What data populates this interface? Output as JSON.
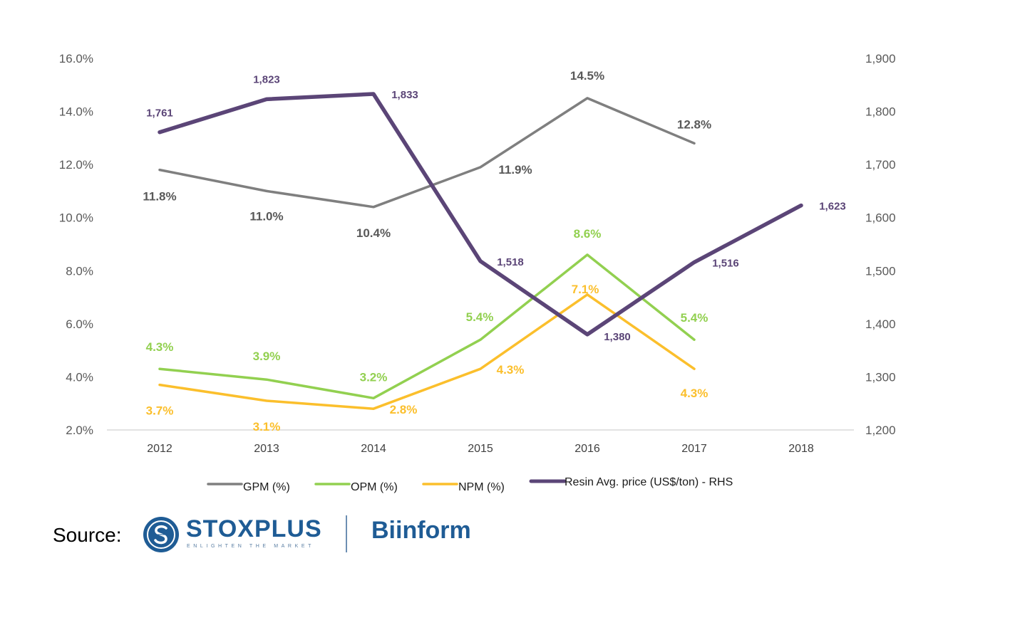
{
  "chart_data": {
    "type": "line",
    "categories": [
      "2012",
      "2013",
      "2014",
      "2015",
      "2016",
      "2017",
      "2018"
    ],
    "y_left": {
      "ylim": [
        2.0,
        16.0
      ],
      "ticks": [
        "2.0%",
        "4.0%",
        "6.0%",
        "8.0%",
        "10.0%",
        "12.0%",
        "14.0%",
        "16.0%"
      ]
    },
    "y_right": {
      "ylim": [
        1200,
        1900
      ],
      "ticks": [
        "1,200",
        "1,300",
        "1,400",
        "1,500",
        "1,600",
        "1,700",
        "1,800",
        "1,900"
      ]
    },
    "grid": false,
    "legend_position": "bottom",
    "series": [
      {
        "name": "GPM (%)",
        "axis": "left",
        "color": "#7f7f7f",
        "values": [
          11.8,
          11.0,
          10.4,
          11.9,
          14.5,
          12.8,
          null
        ],
        "labels": [
          "11.8%",
          "11.0%",
          "10.4%",
          "11.9%",
          "14.5%",
          "12.8%",
          null
        ]
      },
      {
        "name": "OPM (%)",
        "axis": "left",
        "color": "#92d050",
        "values": [
          4.3,
          3.9,
          3.2,
          5.4,
          8.6,
          5.4,
          null
        ],
        "labels": [
          "4.3%",
          "3.9%",
          "3.2%",
          "5.4%",
          "8.6%",
          "5.4%",
          null
        ]
      },
      {
        "name": "NPM (%)",
        "axis": "left",
        "color": "#fbbf2c",
        "values": [
          3.7,
          3.1,
          2.8,
          4.3,
          7.1,
          4.3,
          null
        ],
        "labels": [
          "3.7%",
          "3.1%",
          "2.8%",
          "4.3%",
          "7.1%",
          "4.3%",
          null
        ]
      },
      {
        "name": "Resin Avg. price (US$/ton) - RHS",
        "axis": "right",
        "color": "#5b4577",
        "values": [
          1761,
          1823,
          1833,
          1518,
          1380,
          1516,
          1623
        ],
        "labels": [
          "1,761",
          "1,823",
          "1,833",
          "1,518",
          "1,380",
          "1,516",
          "1,623"
        ]
      }
    ]
  },
  "source": {
    "label": "Source:",
    "stoxplus_name": "STOXPLUS",
    "stoxplus_tagline": "ENLIGHTEN THE MARKET",
    "biinform_name": "Biinform",
    "brand_color": "#1f5c95"
  }
}
